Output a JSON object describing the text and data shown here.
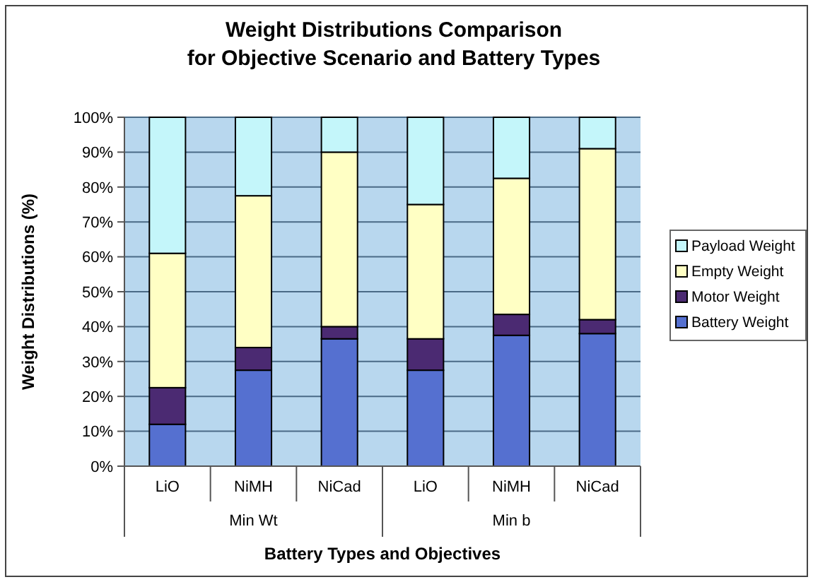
{
  "chart_data": {
    "type": "bar",
    "stacked": true,
    "title": "Weight Distributions Comparison\nfor Objective Scenario and Battery Types",
    "xlabel": "Battery Types and Objectives",
    "ylabel": "Weight Distributions (%)",
    "categories": [
      "LiO",
      "NiMH",
      "NiCad",
      "LiO",
      "NiMH",
      "NiCad"
    ],
    "annotations": [
      "Min Wt",
      "Min b"
    ],
    "series": [
      {
        "name": "Battery Weight",
        "color": "#5570d0",
        "values": [
          12,
          27.5,
          36.5,
          27.5,
          37.5,
          38
        ]
      },
      {
        "name": "Motor Weight",
        "color": "#4b2a72",
        "values": [
          10.5,
          6.5,
          3.5,
          9,
          6,
          4
        ]
      },
      {
        "name": "Empty Weight",
        "color": "#ffffc4",
        "values": [
          38.5,
          43.5,
          50,
          38.5,
          39,
          49
        ]
      },
      {
        "name": "Payload Weight",
        "color": "#c4f6fa",
        "values": [
          39,
          22.5,
          10,
          25,
          17.5,
          9
        ]
      }
    ],
    "ylim": [
      0,
      100
    ],
    "yticks": [
      {
        "value": 0,
        "label": "0%"
      },
      {
        "value": 10,
        "label": "10%"
      },
      {
        "value": 20,
        "label": "20%"
      },
      {
        "value": 30,
        "label": "30%"
      },
      {
        "value": 40,
        "label": "40%"
      },
      {
        "value": 50,
        "label": "50%"
      },
      {
        "value": 60,
        "label": "60%"
      },
      {
        "value": 70,
        "label": "70%"
      },
      {
        "value": 80,
        "label": "80%"
      },
      {
        "value": 90,
        "label": "90%"
      },
      {
        "value": 100,
        "label": "100%"
      }
    ],
    "grid": "y",
    "legend": "right"
  }
}
